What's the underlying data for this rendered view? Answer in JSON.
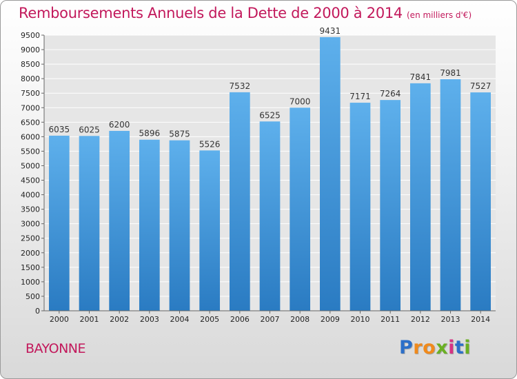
{
  "chart_data": {
    "type": "bar",
    "title": "Remboursements Annuels de la Dette de 2000 à 2014",
    "subtitle": "(en milliers d'€)",
    "categories": [
      "2000",
      "2001",
      "2002",
      "2003",
      "2004",
      "2005",
      "2006",
      "2007",
      "2008",
      "2009",
      "2010",
      "2011",
      "2012",
      "2013",
      "2014"
    ],
    "values": [
      6035,
      6025,
      6200,
      5896,
      5875,
      5526,
      7532,
      6525,
      7000,
      9431,
      7171,
      7264,
      7841,
      7981,
      7527
    ],
    "xlabel": "",
    "ylabel": "",
    "ylim": [
      0,
      9500
    ],
    "y_ticks": [
      0,
      500,
      1000,
      1500,
      2000,
      2500,
      3000,
      3500,
      4000,
      4500,
      5000,
      5500,
      6000,
      6500,
      7000,
      7500,
      8000,
      8500,
      9000,
      9500
    ],
    "grid": true,
    "bar_color_top": "#5eb0ec",
    "bar_color_bottom": "#2a7bc2"
  },
  "location": "BAYONNE",
  "brand": {
    "letters": [
      "P",
      "r",
      "o",
      "x",
      "i",
      "t",
      "i"
    ],
    "colors": [
      "#2b6fc9",
      "#f08a1c",
      "#f08a1c",
      "#6ab023",
      "#d63384",
      "#2b6fc9",
      "#6ab023"
    ]
  }
}
